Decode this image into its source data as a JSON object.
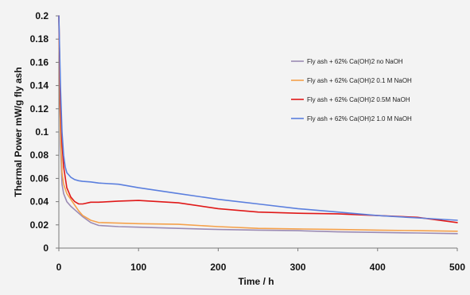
{
  "chart_data": {
    "type": "line",
    "title": "",
    "xlabel": "Time / h",
    "ylabel": "Thermal Power mW/g fly ash",
    "xlim": [
      0,
      500
    ],
    "ylim": [
      0,
      0.2
    ],
    "xticks": [
      0,
      100,
      200,
      300,
      400,
      500
    ],
    "xtick_labels": [
      "0",
      "100",
      "200",
      "300",
      "400",
      "500"
    ],
    "yticks": [
      0,
      0.02,
      0.04,
      0.06,
      0.08,
      0.1,
      0.12,
      0.14,
      0.16,
      0.18,
      0.2
    ],
    "ytick_labels": [
      "0",
      "0.02",
      "0.04",
      "0.06",
      "0.08",
      "0.1",
      "0.12",
      "0.14",
      "0.16",
      "0.18",
      "0.2"
    ],
    "grid": false,
    "legend_position": "upper-right",
    "series": [
      {
        "name": "Fly ash + 62% Ca(OH)2 no NaOH",
        "color": "#9b8bb4",
        "x": [
          0,
          2,
          4,
          6,
          10,
          15,
          20,
          25,
          30,
          40,
          50,
          75,
          100,
          150,
          200,
          250,
          300,
          350,
          400,
          450,
          500
        ],
        "y": [
          0.2,
          0.09,
          0.055,
          0.047,
          0.04,
          0.036,
          0.033,
          0.03,
          0.027,
          0.022,
          0.0195,
          0.0185,
          0.018,
          0.017,
          0.016,
          0.0155,
          0.015,
          0.014,
          0.0135,
          0.013,
          0.0125
        ]
      },
      {
        "name": "Fly ash + 62% Ca(OH)2 0.1 M NaOH",
        "color": "#f5a14a",
        "x": [
          0,
          2,
          4,
          6,
          10,
          15,
          20,
          25,
          30,
          40,
          50,
          75,
          100,
          150,
          200,
          250,
          300,
          350,
          400,
          450,
          500
        ],
        "y": [
          0.2,
          0.1,
          0.065,
          0.055,
          0.047,
          0.042,
          0.037,
          0.032,
          0.028,
          0.024,
          0.022,
          0.0215,
          0.021,
          0.0205,
          0.0185,
          0.017,
          0.0165,
          0.016,
          0.0155,
          0.015,
          0.0145
        ]
      },
      {
        "name": "Fly ash + 62% Ca(OH)2 0.5M NaOH",
        "color": "#e01818",
        "x": [
          0,
          2,
          4,
          6,
          10,
          15,
          20,
          25,
          30,
          40,
          50,
          75,
          100,
          150,
          200,
          250,
          300,
          350,
          400,
          450,
          500
        ],
        "y": [
          0.2,
          0.125,
          0.09,
          0.07,
          0.052,
          0.044,
          0.04,
          0.038,
          0.038,
          0.0395,
          0.0395,
          0.0405,
          0.041,
          0.039,
          0.034,
          0.031,
          0.03,
          0.0295,
          0.028,
          0.0265,
          0.022
        ]
      },
      {
        "name": "Fly ash + 62% Ca(OH)2 1.0 M NaOH",
        "color": "#5b7fde",
        "x": [
          0,
          2,
          4,
          6,
          8,
          10,
          15,
          20,
          25,
          30,
          40,
          50,
          75,
          100,
          150,
          200,
          250,
          300,
          350,
          400,
          450,
          500
        ],
        "y": [
          0.2,
          0.14,
          0.1,
          0.08,
          0.07,
          0.065,
          0.061,
          0.059,
          0.058,
          0.0575,
          0.057,
          0.056,
          0.055,
          0.052,
          0.047,
          0.042,
          0.038,
          0.034,
          0.031,
          0.028,
          0.026,
          0.024
        ]
      }
    ]
  }
}
